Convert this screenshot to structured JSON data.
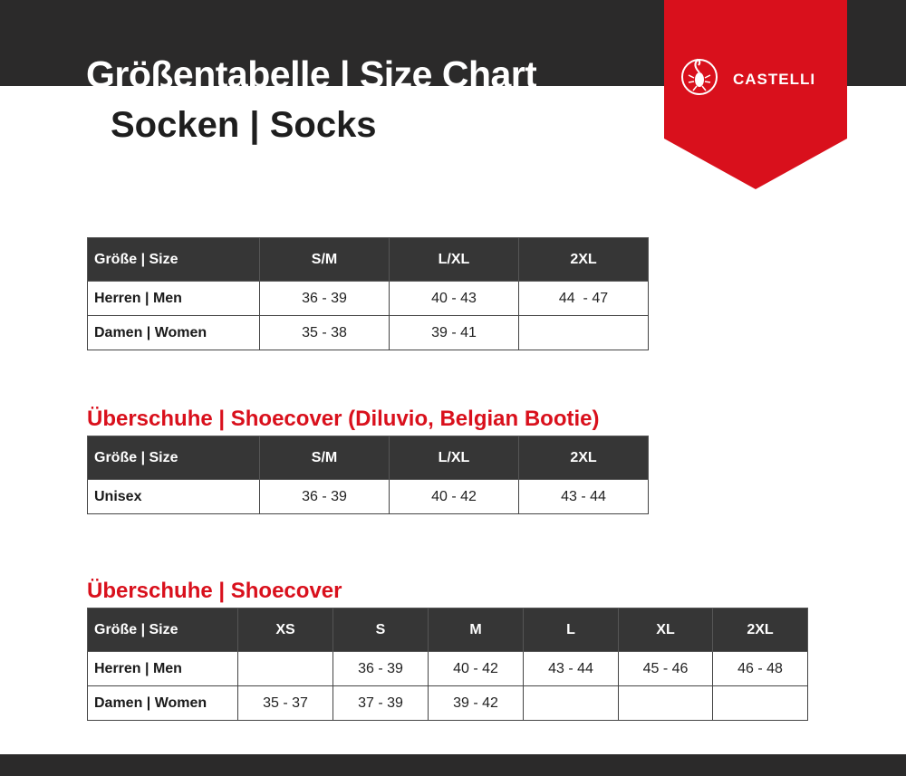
{
  "header": {
    "title": "Größentabelle | Size Chart",
    "subtitle": "Socken | Socks",
    "logo_text": "CASTELLI",
    "brand_color": "#d9101c",
    "dark_color": "#2b2a2a"
  },
  "tables": [
    {
      "title": "",
      "headers": [
        "Größe | Size",
        "S/M",
        "L/XL",
        "2XL"
      ],
      "rows": [
        [
          "Herren | Men",
          "36 - 39",
          "40 - 43",
          "44  - 47"
        ],
        [
          "Damen | Women",
          "35 - 38",
          "39 - 41",
          ""
        ]
      ]
    },
    {
      "title": "Überschuhe | Shoecover (Diluvio, Belgian Bootie)",
      "headers": [
        "Größe | Size",
        "S/M",
        "L/XL",
        "2XL"
      ],
      "rows": [
        [
          "Unisex",
          "36 - 39",
          "40 - 42",
          "43 - 44"
        ]
      ]
    },
    {
      "title": "Überschuhe | Shoecover",
      "headers": [
        "Größe | Size",
        "XS",
        "S",
        "M",
        "L",
        "XL",
        "2XL"
      ],
      "rows": [
        [
          "Herren | Men",
          "",
          "36 - 39",
          "40 - 42",
          "43 - 44",
          "45 - 46",
          "46 - 48"
        ],
        [
          "Damen | Women",
          "35 - 37",
          "37 - 39",
          "39 - 42",
          "",
          "",
          ""
        ]
      ]
    }
  ]
}
